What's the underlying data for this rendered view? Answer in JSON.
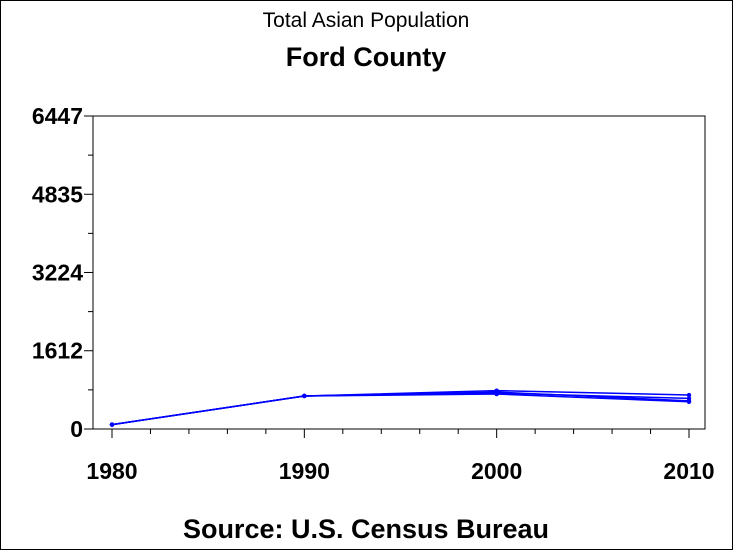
{
  "chart_data": {
    "type": "line",
    "title": "Total Asian Population",
    "subtitle": "Ford County",
    "source": "Source: U.S. Census Bureau",
    "xlabel": "",
    "ylabel": "",
    "x_ticks": [
      "1980",
      "1990",
      "2000",
      "2010"
    ],
    "y_ticks": [
      "0",
      "1612",
      "3224",
      "4835",
      "6447"
    ],
    "xlim": [
      1980,
      2010
    ],
    "ylim": [
      0,
      6447
    ],
    "grid": false,
    "legend": "none",
    "colors": {
      "series": "#0000ff",
      "axis": "#000000"
    },
    "series": [
      {
        "x": [
          1980,
          1990,
          2000,
          2010
        ],
        "values": [
          90,
          680,
          760,
          580
        ]
      },
      {
        "x": [
          1980,
          1990,
          2000,
          2010
        ],
        "values": [
          90,
          680,
          740,
          630
        ]
      },
      {
        "x": [
          1980,
          1990,
          2000,
          2010
        ],
        "values": [
          90,
          680,
          790,
          700
        ]
      },
      {
        "x": [
          1980,
          1990,
          2000,
          2010
        ],
        "values": [
          90,
          680,
          720,
          560
        ]
      }
    ]
  }
}
